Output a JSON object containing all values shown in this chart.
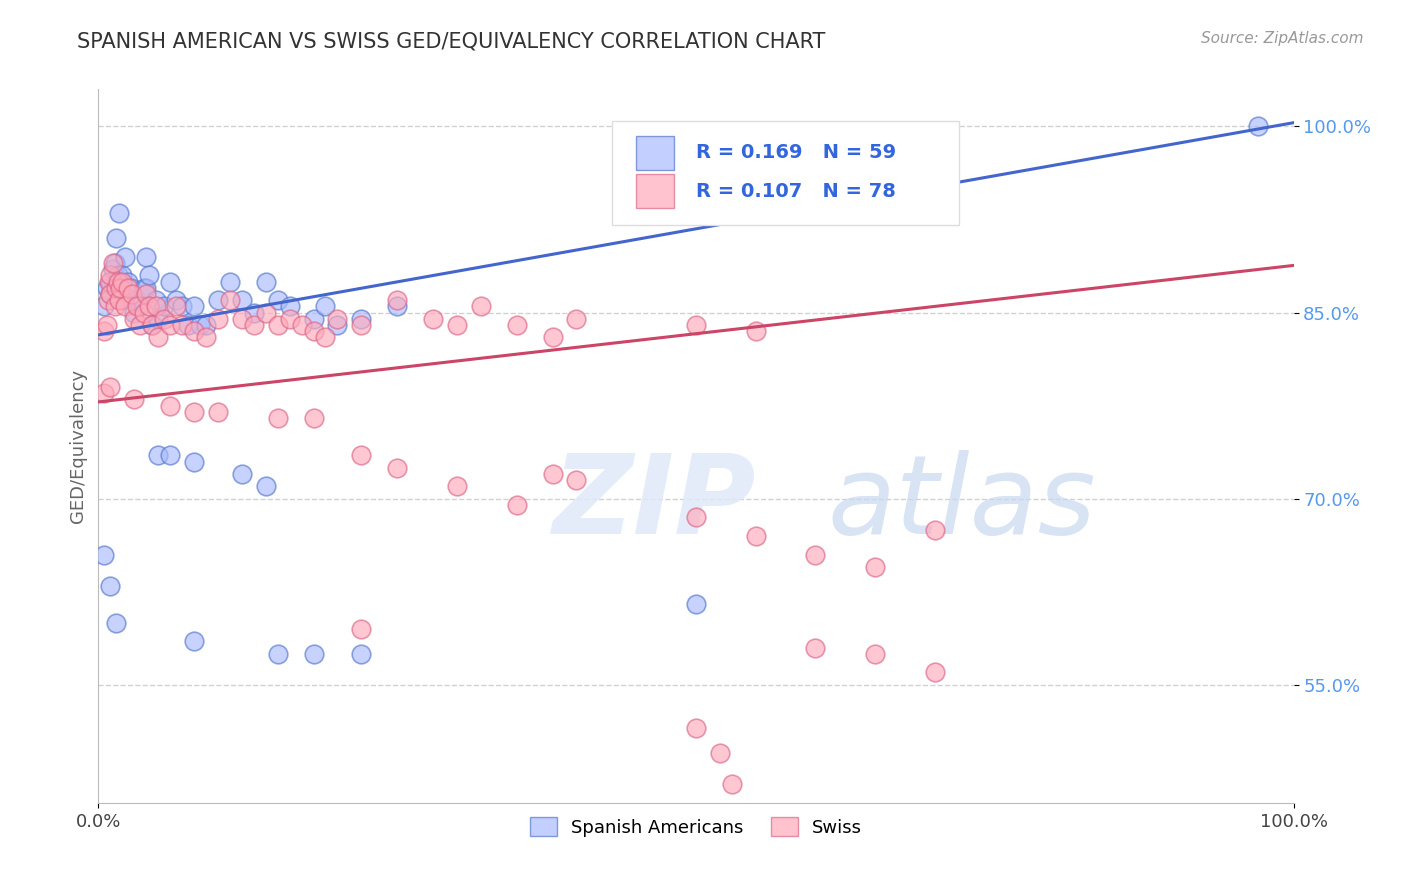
{
  "title": "SPANISH AMERICAN VS SWISS GED/EQUIVALENCY CORRELATION CHART",
  "source": "Source: ZipAtlas.com",
  "ylabel": "GED/Equivalency",
  "xlim": [
    0.0,
    1.0
  ],
  "ylim": [
    0.455,
    1.03
  ],
  "x_ticks": [
    0.0,
    1.0
  ],
  "x_tick_labels": [
    "0.0%",
    "100.0%"
  ],
  "y_ticks": [
    0.55,
    0.7,
    0.85,
    1.0
  ],
  "y_tick_labels": [
    "55.0%",
    "70.0%",
    "85.0%",
    "100.0%"
  ],
  "grid_color": "#cccccc",
  "background_color": "#ffffff",
  "legend_r1": "R = 0.169",
  "legend_n1": "N = 59",
  "legend_r2": "R = 0.107",
  "legend_n2": "N = 78",
  "color_blue": "#aabbff",
  "color_pink": "#ffaabb",
  "edge_blue": "#5577cc",
  "edge_pink": "#dd6688",
  "line_blue": "#4466cc",
  "line_pink": "#cc4466",
  "blue_line_start": 0.832,
  "blue_line_end": 1.003,
  "pink_line_start": 0.778,
  "pink_line_end": 0.888,
  "blue_x": [
    0.005,
    0.007,
    0.01,
    0.01,
    0.012,
    0.014,
    0.015,
    0.016,
    0.017,
    0.018,
    0.02,
    0.02,
    0.022,
    0.025,
    0.027,
    0.03,
    0.032,
    0.035,
    0.038,
    0.04,
    0.04,
    0.042,
    0.045,
    0.048,
    0.05,
    0.055,
    0.06,
    0.065,
    0.07,
    0.075,
    0.08,
    0.085,
    0.09,
    0.1,
    0.11,
    0.12,
    0.13,
    0.14,
    0.15,
    0.16,
    0.18,
    0.19,
    0.2,
    0.22,
    0.25,
    0.05,
    0.06,
    0.08,
    0.12,
    0.14,
    0.005,
    0.01,
    0.015,
    0.08,
    0.15,
    0.18,
    0.22,
    0.5,
    0.97
  ],
  "blue_y": [
    0.855,
    0.87,
    0.865,
    0.875,
    0.885,
    0.89,
    0.91,
    0.88,
    0.93,
    0.875,
    0.86,
    0.88,
    0.895,
    0.875,
    0.87,
    0.85,
    0.86,
    0.855,
    0.87,
    0.87,
    0.895,
    0.88,
    0.84,
    0.86,
    0.845,
    0.855,
    0.875,
    0.86,
    0.855,
    0.84,
    0.855,
    0.84,
    0.84,
    0.86,
    0.875,
    0.86,
    0.85,
    0.875,
    0.86,
    0.855,
    0.845,
    0.855,
    0.84,
    0.845,
    0.855,
    0.735,
    0.735,
    0.73,
    0.72,
    0.71,
    0.655,
    0.63,
    0.6,
    0.585,
    0.575,
    0.575,
    0.575,
    0.615,
    1.0
  ],
  "pink_x": [
    0.005,
    0.007,
    0.008,
    0.009,
    0.01,
    0.01,
    0.012,
    0.014,
    0.015,
    0.016,
    0.017,
    0.018,
    0.02,
    0.022,
    0.025,
    0.028,
    0.03,
    0.032,
    0.035,
    0.038,
    0.04,
    0.042,
    0.045,
    0.048,
    0.05,
    0.055,
    0.06,
    0.065,
    0.07,
    0.08,
    0.09,
    0.1,
    0.11,
    0.12,
    0.13,
    0.14,
    0.15,
    0.16,
    0.17,
    0.18,
    0.19,
    0.2,
    0.22,
    0.25,
    0.28,
    0.3,
    0.32,
    0.35,
    0.38,
    0.4,
    0.5,
    0.55,
    0.005,
    0.01,
    0.03,
    0.06,
    0.08,
    0.1,
    0.15,
    0.18,
    0.22,
    0.25,
    0.3,
    0.35,
    0.5,
    0.55,
    0.6,
    0.65,
    0.7,
    0.38,
    0.4,
    0.22,
    0.5,
    0.52,
    0.53,
    0.6,
    0.65,
    0.7
  ],
  "pink_y": [
    0.835,
    0.84,
    0.86,
    0.875,
    0.865,
    0.88,
    0.89,
    0.855,
    0.87,
    0.875,
    0.86,
    0.87,
    0.875,
    0.855,
    0.87,
    0.865,
    0.845,
    0.855,
    0.84,
    0.85,
    0.865,
    0.855,
    0.84,
    0.855,
    0.83,
    0.845,
    0.84,
    0.855,
    0.84,
    0.835,
    0.83,
    0.845,
    0.86,
    0.845,
    0.84,
    0.85,
    0.84,
    0.845,
    0.84,
    0.835,
    0.83,
    0.845,
    0.84,
    0.86,
    0.845,
    0.84,
    0.855,
    0.84,
    0.83,
    0.845,
    0.84,
    0.835,
    0.785,
    0.79,
    0.78,
    0.775,
    0.77,
    0.77,
    0.765,
    0.765,
    0.735,
    0.725,
    0.71,
    0.695,
    0.685,
    0.67,
    0.655,
    0.645,
    0.675,
    0.72,
    0.715,
    0.595,
    0.515,
    0.495,
    0.47,
    0.58,
    0.575,
    0.56
  ]
}
